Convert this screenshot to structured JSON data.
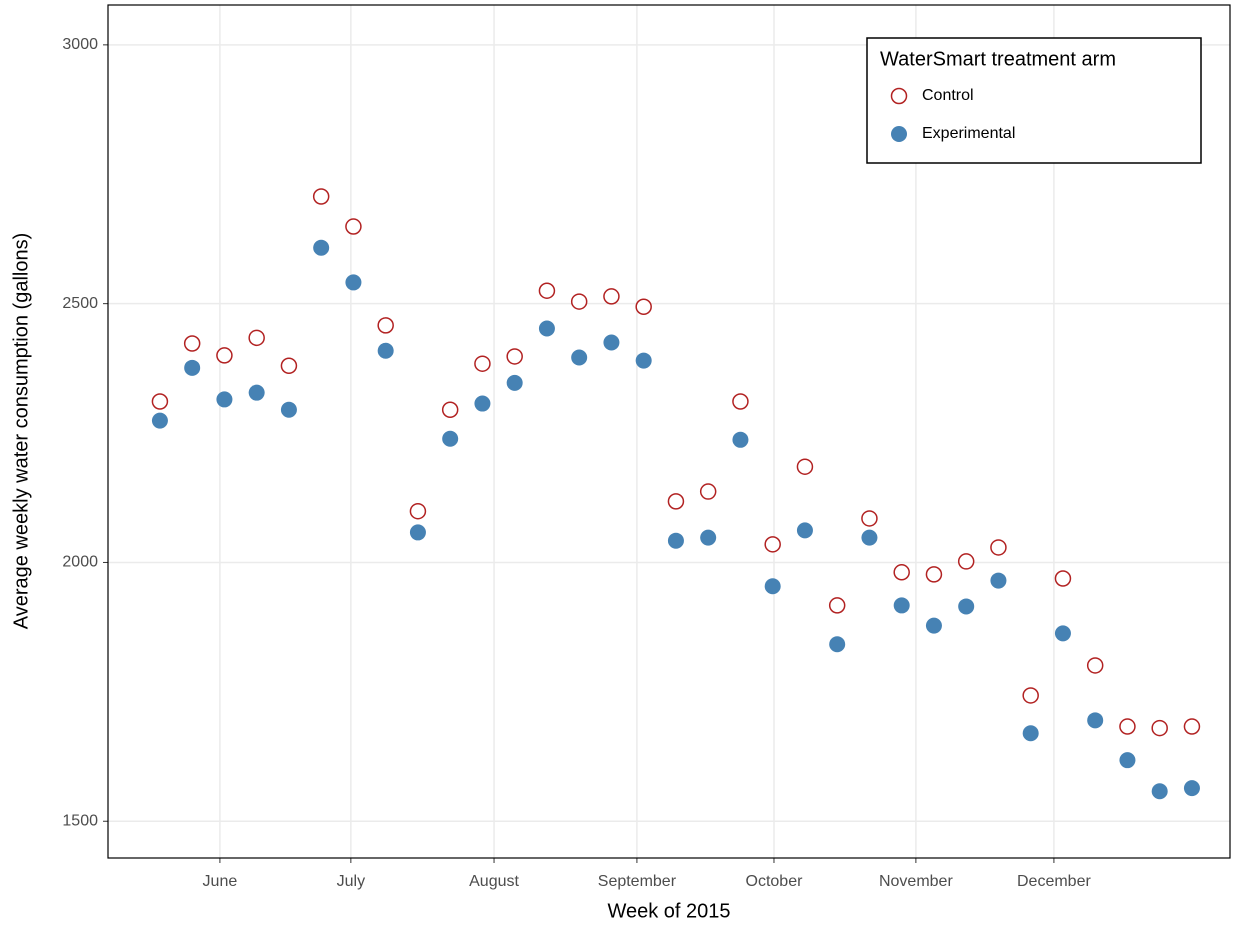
{
  "chart_data": {
    "type": "scatter",
    "x_label": "Week of 2015",
    "y_label": "Average weekly water consumption (gallons)",
    "x": [
      21,
      22,
      23,
      24,
      25,
      26,
      27,
      28,
      29,
      30,
      31,
      32,
      33,
      34,
      35,
      36,
      37,
      38,
      39,
      40,
      41,
      42,
      43,
      44,
      45,
      46,
      47,
      48,
      49,
      50,
      51,
      52,
      53
    ],
    "series": [
      {
        "name": "Control",
        "color": "#b22222",
        "filled": false,
        "values": [
          2311,
          2423,
          2400,
          2434,
          2380,
          2707,
          2649,
          2458,
          2099,
          2295,
          2384,
          2398,
          2525,
          2504,
          2514,
          2494,
          2118,
          2137,
          2311,
          2035,
          2185,
          1917,
          2085,
          1981,
          1977,
          2002,
          2029,
          1743,
          1969,
          1801,
          1683,
          1680,
          1683
        ]
      },
      {
        "name": "Experimental",
        "color": "#4682b4",
        "filled": true,
        "values": [
          2274,
          2376,
          2315,
          2328,
          2295,
          2608,
          2541,
          2409,
          2058,
          2239,
          2307,
          2347,
          2452,
          2396,
          2425,
          2390,
          2042,
          2048,
          2237,
          1954,
          2062,
          1842,
          2048,
          1917,
          1878,
          1915,
          1965,
          1670,
          1863,
          1695,
          1618,
          1558,
          1564
        ]
      }
    ],
    "xlim": [
      19.39,
      54.18
    ],
    "xticks": [
      {
        "value": 22.86,
        "label": "June"
      },
      {
        "value": 26.92,
        "label": "July"
      },
      {
        "value": 31.36,
        "label": "August"
      },
      {
        "value": 35.79,
        "label": "September"
      },
      {
        "value": 40.04,
        "label": "October"
      },
      {
        "value": 44.44,
        "label": "November"
      },
      {
        "value": 48.72,
        "label": "December"
      }
    ],
    "ylim": [
      1429,
      3077
    ],
    "yticks": [
      1500,
      2000,
      2500,
      3000
    ],
    "grid": true,
    "legend_title": "WaterSmart treatment arm",
    "legend_position": "top-right"
  }
}
